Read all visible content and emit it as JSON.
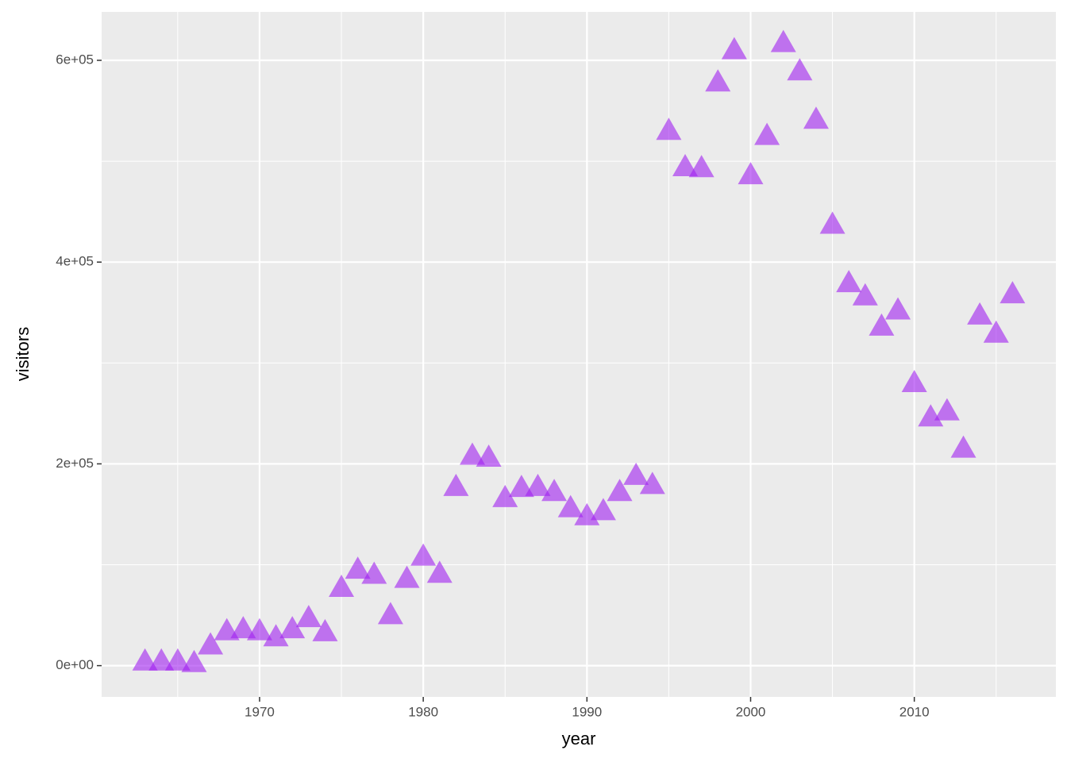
{
  "chart_data": {
    "type": "scatter",
    "x_label": "year",
    "y_label": "visitors",
    "x": [
      1963,
      1964,
      1965,
      1966,
      1967,
      1968,
      1969,
      1970,
      1971,
      1972,
      1973,
      1974,
      1975,
      1976,
      1977,
      1978,
      1979,
      1980,
      1981,
      1982,
      1983,
      1984,
      1985,
      1986,
      1987,
      1988,
      1989,
      1990,
      1991,
      1992,
      1993,
      1994,
      1995,
      1996,
      1997,
      1998,
      1999,
      2000,
      2001,
      2002,
      2003,
      2004,
      2005,
      2006,
      2007,
      2008,
      2009,
      2010,
      2011,
      2012,
      2013,
      2014,
      2015,
      2016
    ],
    "series": [
      {
        "name": "visitors",
        "color": "#a020f0",
        "values": [
          3000,
          3000,
          3000,
          1500,
          19000,
          33000,
          35000,
          33000,
          27000,
          35000,
          46000,
          32000,
          76000,
          94000,
          89000,
          49000,
          85000,
          107000,
          90000,
          176000,
          207000,
          205000,
          165000,
          175000,
          176000,
          171000,
          155000,
          147000,
          152000,
          171000,
          187000,
          178000,
          529000,
          493000,
          492000,
          577000,
          609000,
          485000,
          524000,
          616000,
          588000,
          540000,
          436000,
          378000,
          365000,
          335000,
          351000,
          279000,
          245000,
          251000,
          214000,
          346000,
          328000,
          367000
        ]
      }
    ],
    "xlim": [
      1960.35,
      2018.65
    ],
    "xticks": [
      1970,
      1980,
      1990,
      2000,
      2010
    ],
    "ylim": [
      -31000,
      648000
    ],
    "yticks": [
      {
        "value": 0,
        "label": "0e+00"
      },
      {
        "value": 200000,
        "label": "2e+05"
      },
      {
        "value": 400000,
        "label": "4e+05"
      },
      {
        "value": 600000,
        "label": "6e+05"
      }
    ],
    "grid": true
  }
}
